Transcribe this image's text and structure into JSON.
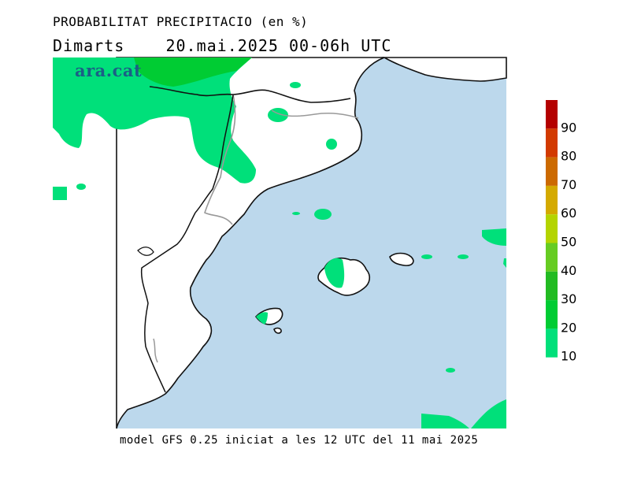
{
  "header": {
    "title": "PROBABILITAT PRECIPITACIO (en %)",
    "subtitle_day": "Dimarts",
    "subtitle_period": "20.mai.2025 00-06h UTC"
  },
  "logo": "ara.cat",
  "footer": "model GFS 0.25 iniciat a les 12 UTC del 11 mai 2025",
  "colors": {
    "sea": "#bcd8ec",
    "land": "#ffffff",
    "precip_10_20": "#00e07a"
  },
  "legend": {
    "labels": [
      "90",
      "80",
      "70",
      "60",
      "50",
      "40",
      "30",
      "20",
      "10"
    ],
    "colors": [
      "#b40000",
      "#d23a00",
      "#cc6a00",
      "#d4aa00",
      "#b4d400",
      "#66cc22",
      "#22bb22",
      "#00cc33",
      "#00e07a"
    ]
  }
}
